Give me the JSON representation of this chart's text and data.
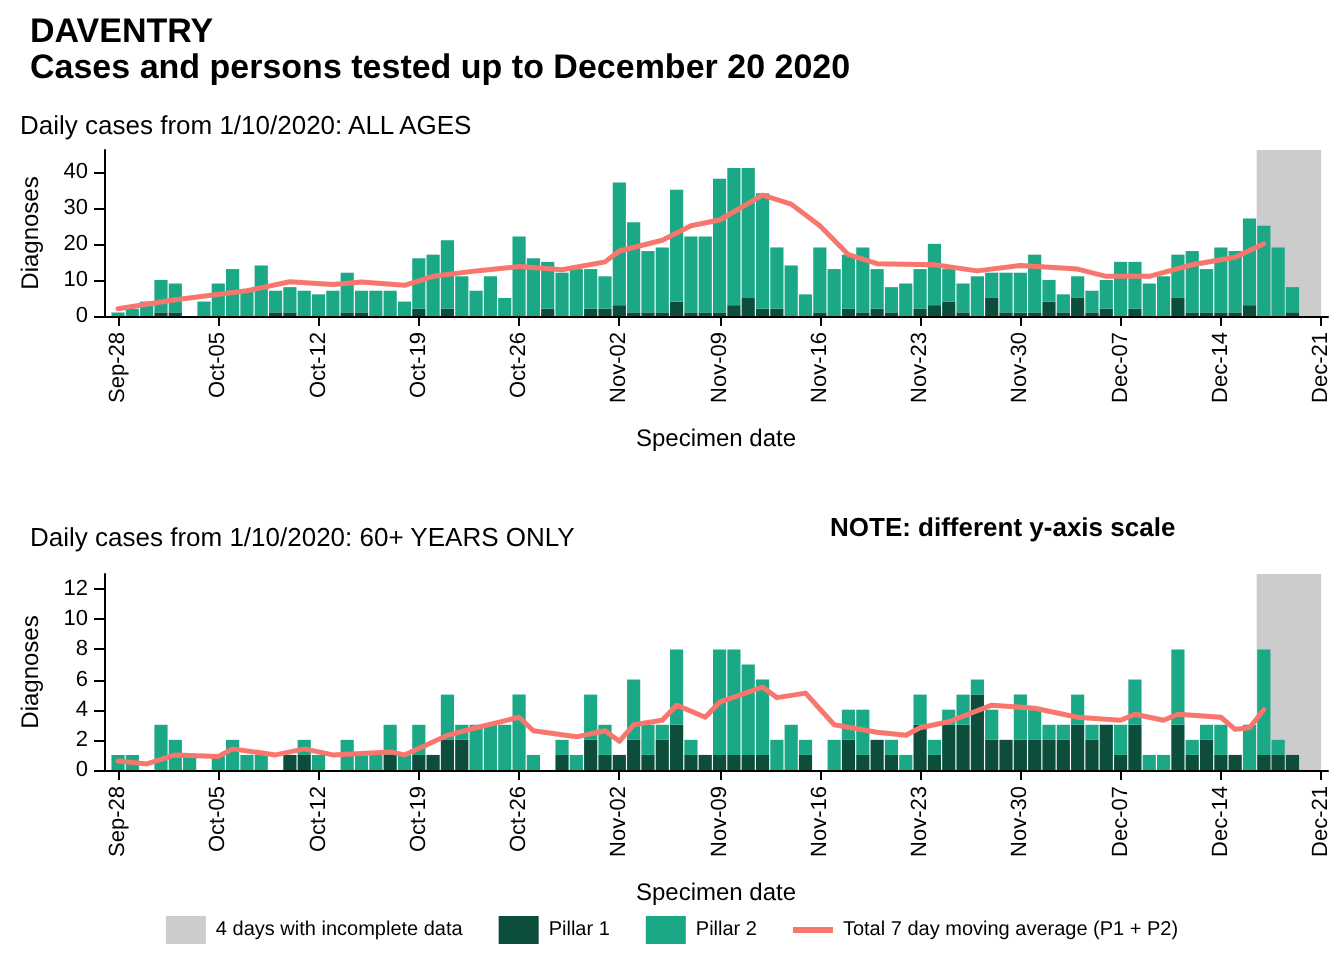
{
  "chart_data": [
    {
      "type": "bar",
      "title": "DAVENTRY",
      "subtitle": "Cases and persons tested up to December 20 2020",
      "annotations": [
        "Daily cases from 1/10/2020: ALL AGES"
      ],
      "xlabel": "Specimen date",
      "ylabel": "Diagnoses",
      "stacked": true,
      "grid": false,
      "x": [
        "2020-09-28",
        "2020-09-29",
        "2020-09-30",
        "2020-10-01",
        "2020-10-02",
        "2020-10-03",
        "2020-10-04",
        "2020-10-05",
        "2020-10-06",
        "2020-10-07",
        "2020-10-08",
        "2020-10-09",
        "2020-10-10",
        "2020-10-11",
        "2020-10-12",
        "2020-10-13",
        "2020-10-14",
        "2020-10-15",
        "2020-10-16",
        "2020-10-17",
        "2020-10-18",
        "2020-10-19",
        "2020-10-20",
        "2020-10-21",
        "2020-10-22",
        "2020-10-23",
        "2020-10-24",
        "2020-10-25",
        "2020-10-26",
        "2020-10-27",
        "2020-10-28",
        "2020-10-29",
        "2020-10-30",
        "2020-10-31",
        "2020-11-01",
        "2020-11-02",
        "2020-11-03",
        "2020-11-04",
        "2020-11-05",
        "2020-11-06",
        "2020-11-07",
        "2020-11-08",
        "2020-11-09",
        "2020-11-10",
        "2020-11-11",
        "2020-11-12",
        "2020-11-13",
        "2020-11-14",
        "2020-11-15",
        "2020-11-16",
        "2020-11-17",
        "2020-11-18",
        "2020-11-19",
        "2020-11-20",
        "2020-11-21",
        "2020-11-22",
        "2020-11-23",
        "2020-11-24",
        "2020-11-25",
        "2020-11-26",
        "2020-11-27",
        "2020-11-28",
        "2020-11-29",
        "2020-11-30",
        "2020-12-01",
        "2020-12-02",
        "2020-12-03",
        "2020-12-04",
        "2020-12-05",
        "2020-12-06",
        "2020-12-07",
        "2020-12-08",
        "2020-12-09",
        "2020-12-10",
        "2020-12-11",
        "2020-12-12",
        "2020-12-13",
        "2020-12-14",
        "2020-12-15",
        "2020-12-16",
        "2020-12-17",
        "2020-12-18",
        "2020-12-19"
      ],
      "xlim": [
        "2020-09-27T12:00",
        "2020-12-21"
      ],
      "xticks": [
        {
          "value": "2020-09-28",
          "label": "Sep-28"
        },
        {
          "value": "2020-10-05",
          "label": "Oct-05"
        },
        {
          "value": "2020-10-12",
          "label": "Oct-12"
        },
        {
          "value": "2020-10-19",
          "label": "Oct-19"
        },
        {
          "value": "2020-10-26",
          "label": "Oct-26"
        },
        {
          "value": "2020-11-02",
          "label": "Nov-02"
        },
        {
          "value": "2020-11-09",
          "label": "Nov-09"
        },
        {
          "value": "2020-11-16",
          "label": "Nov-16"
        },
        {
          "value": "2020-11-23",
          "label": "Nov-23"
        },
        {
          "value": "2020-11-30",
          "label": "Nov-30"
        },
        {
          "value": "2020-12-07",
          "label": "Dec-07"
        },
        {
          "value": "2020-12-14",
          "label": "Dec-14"
        },
        {
          "value": "2020-12-21",
          "label": "Dec-21"
        }
      ],
      "ylim": [
        0,
        46
      ],
      "yticks": [
        0,
        10,
        20,
        30,
        40
      ],
      "bands": [
        {
          "axis": "x",
          "from": "2020-12-16T12:00",
          "to": "2020-12-21",
          "color": "#cccccc"
        }
      ],
      "series": [
        {
          "color": "#0d4d3b",
          "values": [
            0,
            0,
            0,
            1,
            1,
            0,
            0,
            0,
            0,
            0,
            0,
            1,
            1,
            0,
            0,
            0,
            1,
            1,
            0,
            0,
            0,
            2,
            0,
            2,
            0,
            0,
            0,
            0,
            0,
            0,
            2,
            0,
            0,
            2,
            2,
            3,
            1,
            1,
            1,
            4,
            1,
            1,
            1,
            3,
            5,
            2,
            2,
            0,
            0,
            1,
            0,
            2,
            1,
            2,
            1,
            0,
            2,
            3,
            4,
            1,
            0,
            5,
            1,
            1,
            1,
            4,
            1,
            5,
            1,
            2,
            0,
            2,
            0,
            0,
            5,
            1,
            1,
            1,
            1,
            3,
            0,
            0,
            1
          ]
        },
        {
          "color": "#1aa886",
          "values": [
            1,
            2,
            4,
            9,
            8,
            0,
            4,
            9,
            13,
            7,
            14,
            6,
            7,
            7,
            6,
            7,
            11,
            6,
            7,
            7,
            4,
            14,
            17,
            19,
            11,
            7,
            11,
            5,
            22,
            16,
            13,
            12,
            13,
            11,
            9,
            34,
            25,
            17,
            18,
            31,
            21,
            21,
            37,
            38,
            36,
            32,
            17,
            14,
            6,
            18,
            13,
            15,
            18,
            11,
            7,
            9,
            11,
            17,
            9,
            8,
            11,
            7,
            11,
            11,
            16,
            6,
            5,
            6,
            6,
            8,
            15,
            13,
            9,
            11,
            12,
            17,
            12,
            18,
            17,
            24,
            25,
            19,
            7
          ]
        },
        {
          "type": "line",
          "color": "#f8766d",
          "marker": "none",
          "x": [
            "2020-09-28",
            "2020-10-02",
            "2020-10-07",
            "2020-10-10",
            "2020-10-13",
            "2020-10-15",
            "2020-10-18",
            "2020-10-20",
            "2020-10-23",
            "2020-10-26",
            "2020-10-29",
            "2020-11-01",
            "2020-11-02",
            "2020-11-05",
            "2020-11-07",
            "2020-11-09",
            "2020-11-12",
            "2020-11-14",
            "2020-11-16",
            "2020-11-18",
            "2020-11-20",
            "2020-11-24",
            "2020-11-27",
            "2020-11-30",
            "2020-12-04",
            "2020-12-06",
            "2020-12-09",
            "2020-12-12",
            "2020-12-15",
            "2020-12-17"
          ],
          "values": [
            2,
            4.5,
            7,
            9.5,
            8.7,
            9.4,
            8.5,
            11,
            12.5,
            13.7,
            12.8,
            15,
            18,
            21,
            25,
            26.6,
            33.5,
            31,
            25,
            17,
            14.5,
            14.2,
            12.5,
            14,
            13,
            11,
            11,
            14.2,
            16.3,
            20
          ]
        }
      ]
    },
    {
      "type": "bar",
      "title": "Daily cases from 1/10/2020: 60+ YEARS ONLY",
      "annotations": [
        "NOTE: different y-axis scale"
      ],
      "xlabel": "Specimen date",
      "ylabel": "Diagnoses",
      "stacked": true,
      "grid": false,
      "legend": "bottom",
      "x": [
        "2020-09-28",
        "2020-09-29",
        "2020-09-30",
        "2020-10-01",
        "2020-10-02",
        "2020-10-03",
        "2020-10-04",
        "2020-10-05",
        "2020-10-06",
        "2020-10-07",
        "2020-10-08",
        "2020-10-09",
        "2020-10-10",
        "2020-10-11",
        "2020-10-12",
        "2020-10-13",
        "2020-10-14",
        "2020-10-15",
        "2020-10-16",
        "2020-10-17",
        "2020-10-18",
        "2020-10-19",
        "2020-10-20",
        "2020-10-21",
        "2020-10-22",
        "2020-10-23",
        "2020-10-24",
        "2020-10-25",
        "2020-10-26",
        "2020-10-27",
        "2020-10-28",
        "2020-10-29",
        "2020-10-30",
        "2020-10-31",
        "2020-11-01",
        "2020-11-02",
        "2020-11-03",
        "2020-11-04",
        "2020-11-05",
        "2020-11-06",
        "2020-11-07",
        "2020-11-08",
        "2020-11-09",
        "2020-11-10",
        "2020-11-11",
        "2020-11-12",
        "2020-11-13",
        "2020-11-14",
        "2020-11-15",
        "2020-11-16",
        "2020-11-17",
        "2020-11-18",
        "2020-11-19",
        "2020-11-20",
        "2020-11-21",
        "2020-11-22",
        "2020-11-23",
        "2020-11-24",
        "2020-11-25",
        "2020-11-26",
        "2020-11-27",
        "2020-11-28",
        "2020-11-29",
        "2020-11-30",
        "2020-12-01",
        "2020-12-02",
        "2020-12-03",
        "2020-12-04",
        "2020-12-05",
        "2020-12-06",
        "2020-12-07",
        "2020-12-08",
        "2020-12-09",
        "2020-12-10",
        "2020-12-11",
        "2020-12-12",
        "2020-12-13",
        "2020-12-14",
        "2020-12-15",
        "2020-12-16",
        "2020-12-17",
        "2020-12-18",
        "2020-12-19"
      ],
      "xlim": [
        "2020-09-27T12:00",
        "2020-12-21"
      ],
      "xticks": [
        {
          "value": "2020-09-28",
          "label": "Sep-28"
        },
        {
          "value": "2020-10-05",
          "label": "Oct-05"
        },
        {
          "value": "2020-10-12",
          "label": "Oct-12"
        },
        {
          "value": "2020-10-19",
          "label": "Oct-19"
        },
        {
          "value": "2020-10-26",
          "label": "Oct-26"
        },
        {
          "value": "2020-11-02",
          "label": "Nov-02"
        },
        {
          "value": "2020-11-09",
          "label": "Nov-09"
        },
        {
          "value": "2020-11-16",
          "label": "Nov-16"
        },
        {
          "value": "2020-11-23",
          "label": "Nov-23"
        },
        {
          "value": "2020-11-30",
          "label": "Nov-30"
        },
        {
          "value": "2020-12-07",
          "label": "Dec-07"
        },
        {
          "value": "2020-12-14",
          "label": "Dec-14"
        },
        {
          "value": "2020-12-21",
          "label": "Dec-21"
        }
      ],
      "ylim": [
        0,
        13
      ],
      "yticks": [
        0,
        2,
        4,
        6,
        8,
        10,
        12
      ],
      "bands": [
        {
          "axis": "x",
          "from": "2020-12-16T12:00",
          "to": "2020-12-21",
          "label": "4 days with incomplete data",
          "color": "#cccccc"
        }
      ],
      "series": [
        {
          "name": "Pillar 1",
          "color": "#0d4d3b",
          "values": [
            0,
            0,
            0,
            0,
            0,
            0,
            0,
            0,
            0,
            0,
            0,
            0,
            1,
            1,
            0,
            0,
            0,
            0,
            0,
            1,
            0,
            1,
            1,
            2,
            2,
            0,
            0,
            0,
            0,
            0,
            0,
            1,
            0,
            2,
            1,
            1,
            2,
            1,
            2,
            3,
            1,
            1,
            1,
            1,
            1,
            1,
            0,
            0,
            1,
            0,
            0,
            2,
            1,
            2,
            1,
            0,
            3,
            1,
            3,
            3,
            5,
            2,
            2,
            2,
            2,
            2,
            2,
            3,
            2,
            3,
            1,
            3,
            0,
            0,
            3,
            1,
            2,
            1,
            1,
            0,
            1,
            1,
            1
          ]
        },
        {
          "name": "Pillar 2",
          "color": "#1aa886",
          "values": [
            1,
            1,
            0,
            3,
            2,
            1,
            0,
            1,
            2,
            1,
            1,
            0,
            0,
            1,
            1,
            0,
            2,
            1,
            1,
            2,
            1,
            2,
            0,
            3,
            1,
            3,
            3,
            3,
            5,
            1,
            0,
            1,
            1,
            3,
            2,
            0,
            4,
            2,
            1,
            5,
            1,
            0,
            7,
            7,
            6,
            5,
            2,
            3,
            1,
            0,
            2,
            2,
            3,
            0,
            1,
            1,
            2,
            1,
            1,
            2,
            1,
            2,
            0,
            3,
            2,
            1,
            1,
            2,
            1,
            0,
            2,
            3,
            1,
            1,
            5,
            1,
            1,
            2,
            0,
            3,
            7,
            1,
            0
          ]
        },
        {
          "name": "Total 7 day moving average (P1 + P2)",
          "type": "line",
          "color": "#f8766d",
          "marker": "none",
          "x": [
            "2020-09-28",
            "2020-09-30",
            "2020-10-02",
            "2020-10-05",
            "2020-10-06",
            "2020-10-09",
            "2020-10-11",
            "2020-10-13",
            "2020-10-17",
            "2020-10-18",
            "2020-10-21",
            "2020-10-23",
            "2020-10-26",
            "2020-10-27",
            "2020-10-30",
            "2020-11-01",
            "2020-11-02",
            "2020-11-03",
            "2020-11-05",
            "2020-11-06",
            "2020-11-08",
            "2020-11-09",
            "2020-11-12",
            "2020-11-13",
            "2020-11-15",
            "2020-11-17",
            "2020-11-20",
            "2020-11-22",
            "2020-11-23",
            "2020-11-25",
            "2020-11-28",
            "2020-12-01",
            "2020-12-04",
            "2020-12-07",
            "2020-12-08",
            "2020-12-10",
            "2020-12-11",
            "2020-12-14",
            "2020-12-15",
            "2020-12-16",
            "2020-12-17"
          ],
          "values": [
            0.6,
            0.4,
            1,
            0.9,
            1.4,
            1,
            1.4,
            1,
            1.2,
            1,
            2.3,
            2.8,
            3.5,
            2.6,
            2.2,
            2.6,
            1.9,
            3,
            3.3,
            4.3,
            3.5,
            4.5,
            5.5,
            4.8,
            5.1,
            3,
            2.5,
            2.3,
            2.8,
            3.2,
            4.3,
            4.1,
            3.5,
            3.3,
            3.7,
            3.3,
            3.7,
            3.5,
            2.7,
            2.8,
            4
          ]
        }
      ]
    }
  ]
}
